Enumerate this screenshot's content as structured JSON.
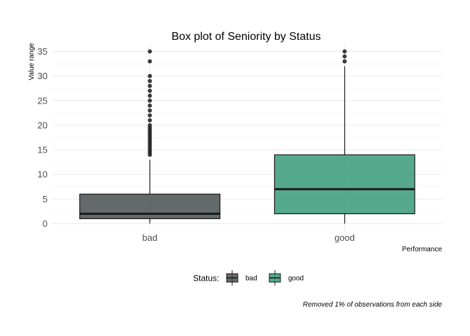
{
  "chart_data": {
    "type": "box",
    "title": "Box plot of Seniority by Status",
    "xlabel": "Performance",
    "ylabel": "Value range",
    "caption": "Removed 1% of observations from each side",
    "categories": [
      "bad",
      "good"
    ],
    "ylim": [
      -1.5,
      36.5
    ],
    "yticks": [
      0,
      5,
      10,
      15,
      20,
      25,
      30,
      35
    ],
    "grid": true,
    "legend": {
      "title": "Status:",
      "position": "bottom",
      "entries": [
        {
          "label": "bad",
          "color": "#3d4545"
        },
        {
          "label": "good",
          "color": "#2a9470"
        }
      ]
    },
    "boxes": [
      {
        "category": "bad",
        "color": "#3d4545",
        "whisker_low": 0,
        "q1": 1,
        "median": 2,
        "q3": 6,
        "whisker_high": 13,
        "outliers": [
          14,
          14.5,
          15,
          15.5,
          16,
          16.5,
          17,
          17.5,
          18,
          18.5,
          19,
          19.5,
          20,
          21,
          22,
          23,
          24,
          25,
          26,
          27,
          28,
          29,
          30,
          33,
          35
        ]
      },
      {
        "category": "good",
        "color": "#2a9470",
        "whisker_low": 0,
        "q1": 2,
        "median": 7,
        "q3": 14,
        "whisker_high": 32,
        "outliers": [
          33,
          34,
          35
        ]
      }
    ]
  }
}
